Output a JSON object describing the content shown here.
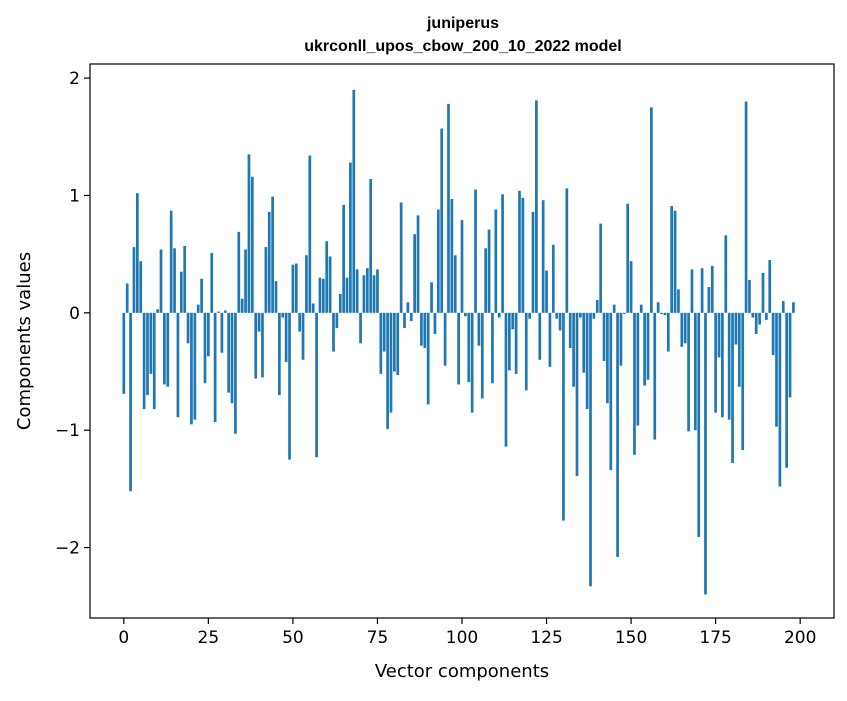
{
  "chart_data": {
    "type": "bar",
    "title_line1": "juniperus",
    "title_line2": "ukrconll_upos_cbow_200_10_2022 model",
    "xlabel": "Vector components",
    "ylabel": "Components values",
    "xlim": [
      -10,
      210
    ],
    "ylim": [
      -2.6,
      2.12
    ],
    "xticks": [
      {
        "value": 0,
        "label": "0"
      },
      {
        "value": 25,
        "label": "25"
      },
      {
        "value": 50,
        "label": "50"
      },
      {
        "value": 75,
        "label": "75"
      },
      {
        "value": 100,
        "label": "100"
      },
      {
        "value": 125,
        "label": "125"
      },
      {
        "value": 150,
        "label": "150"
      },
      {
        "value": 175,
        "label": "175"
      },
      {
        "value": 200,
        "label": "200"
      }
    ],
    "yticks": [
      {
        "value": -2,
        "label": "−2"
      },
      {
        "value": -1,
        "label": "−1"
      },
      {
        "value": 0,
        "label": "0"
      },
      {
        "value": 1,
        "label": "1"
      },
      {
        "value": 2,
        "label": "2"
      }
    ],
    "bar_color": "#1f77b4",
    "values": [
      -0.69,
      0.25,
      -1.52,
      0.56,
      1.02,
      0.44,
      -0.82,
      -0.7,
      -0.52,
      -0.82,
      0.03,
      0.54,
      -0.61,
      -0.63,
      0.87,
      0.55,
      -0.89,
      0.35,
      0.57,
      -0.26,
      -0.95,
      -0.91,
      0.07,
      0.29,
      -0.6,
      -0.37,
      0.51,
      -0.93,
      0.01,
      -0.34,
      0.02,
      -0.68,
      -0.77,
      -1.03,
      0.69,
      0.12,
      0.54,
      1.35,
      1.16,
      -0.56,
      -0.16,
      -0.55,
      0.56,
      0.86,
      0.99,
      0.27,
      -0.7,
      -0.04,
      -0.42,
      -1.25,
      0.41,
      0.42,
      -0.16,
      -0.4,
      0.49,
      1.34,
      0.08,
      -1.23,
      0.3,
      0.29,
      0.61,
      0.48,
      -0.33,
      -0.13,
      0.16,
      0.92,
      0.3,
      1.28,
      1.9,
      0.37,
      -0.26,
      0.32,
      0.38,
      1.14,
      0.32,
      0.37,
      -0.52,
      -0.33,
      -0.99,
      -0.85,
      -0.5,
      -0.53,
      0.94,
      -0.13,
      0.09,
      -0.07,
      0.67,
      0.83,
      -0.28,
      -0.3,
      -0.78,
      0.26,
      -0.18,
      0.88,
      1.57,
      -0.45,
      1.78,
      0.97,
      0.49,
      -0.61,
      0.79,
      -0.03,
      -0.59,
      -0.85,
      1.05,
      -0.28,
      -0.73,
      0.55,
      0.71,
      -0.6,
      0.88,
      -0.04,
      1.01,
      -1.14,
      -0.49,
      -0.14,
      -0.52,
      1.04,
      0.98,
      -0.66,
      -0.05,
      0.86,
      1.81,
      -0.4,
      0.96,
      0.36,
      -0.46,
      0.58,
      -0.05,
      -0.15,
      -1.77,
      1.06,
      -0.3,
      -0.63,
      -1.39,
      -0.04,
      -0.51,
      -0.82,
      -2.33,
      -0.05,
      0.11,
      0.76,
      -0.41,
      -0.77,
      -1.34,
      0.07,
      -2.08,
      -0.45,
      -0.01,
      0.93,
      0.44,
      -1.21,
      -0.96,
      0.07,
      -0.62,
      -0.57,
      1.75,
      -1.08,
      0.09,
      -0.01,
      -0.02,
      -0.33,
      0.91,
      0.87,
      0.2,
      -0.29,
      -0.26,
      -1.01,
      0.37,
      -1.0,
      -1.91,
      0.38,
      -2.4,
      0.22,
      0.4,
      -0.85,
      -0.38,
      -0.89,
      0.66,
      -0.91,
      -1.28,
      -0.27,
      -0.63,
      -1.17,
      1.8,
      0.28,
      -0.04,
      -0.18,
      -0.1,
      0.34,
      -0.06,
      0.45,
      -0.36,
      -0.97,
      -1.48,
      0.1,
      -1.32,
      -0.72,
      0.09
    ]
  }
}
